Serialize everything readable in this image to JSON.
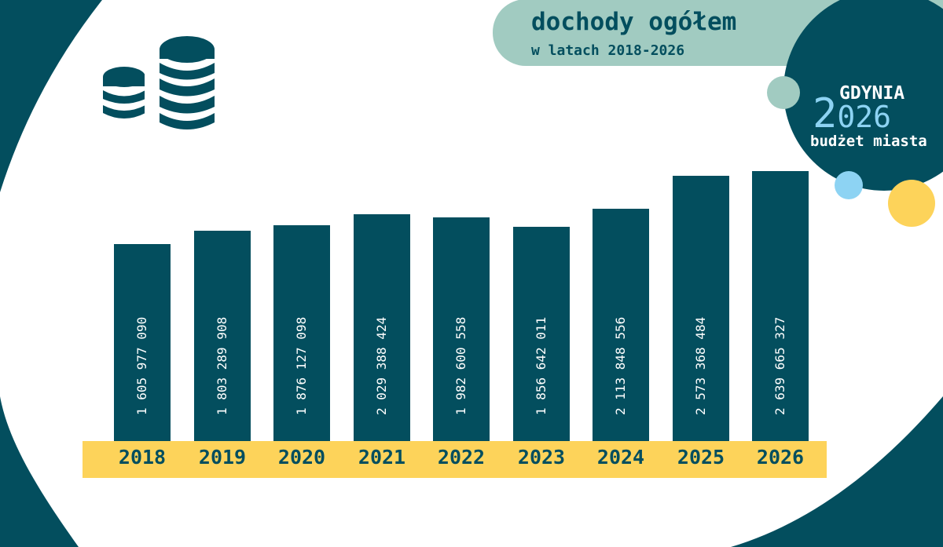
{
  "header": {
    "title": "dochody ogółem",
    "subtitle": "w latach 2018-2026"
  },
  "logo": {
    "city": "GDYNIA",
    "year_big": "2",
    "year_rest": "026",
    "tagline": "budżet miasta"
  },
  "icons": {
    "coins": "coins-stack-icon"
  },
  "colors": {
    "dark": "#034e5e",
    "yellow": "#fdd35a",
    "light_blue": "#8dd3f3",
    "light_green": "#a1cbc1",
    "background": "#ffffff"
  },
  "chart_data": {
    "type": "bar",
    "title": "dochody ogółem",
    "subtitle": "w latach 2018-2026",
    "categories": [
      "2018",
      "2019",
      "2020",
      "2021",
      "2022",
      "2023",
      "2024",
      "2025",
      "2026"
    ],
    "values": [
      1605977090,
      1803289908,
      1876127098,
      2029388424,
      1982600558,
      1856642011,
      2113848556,
      2573368484,
      2639665327
    ],
    "labels": [
      "1 605 977 090",
      "1 803 289 908",
      "1 876 127 098",
      "2 029 388 424",
      "1 982 600 558",
      "1 856 642 011",
      "2 113 848 556",
      "2 573 368 484",
      "2 639 665 327"
    ],
    "xlabel": "",
    "ylabel": "",
    "grid": false,
    "legend": "none"
  }
}
